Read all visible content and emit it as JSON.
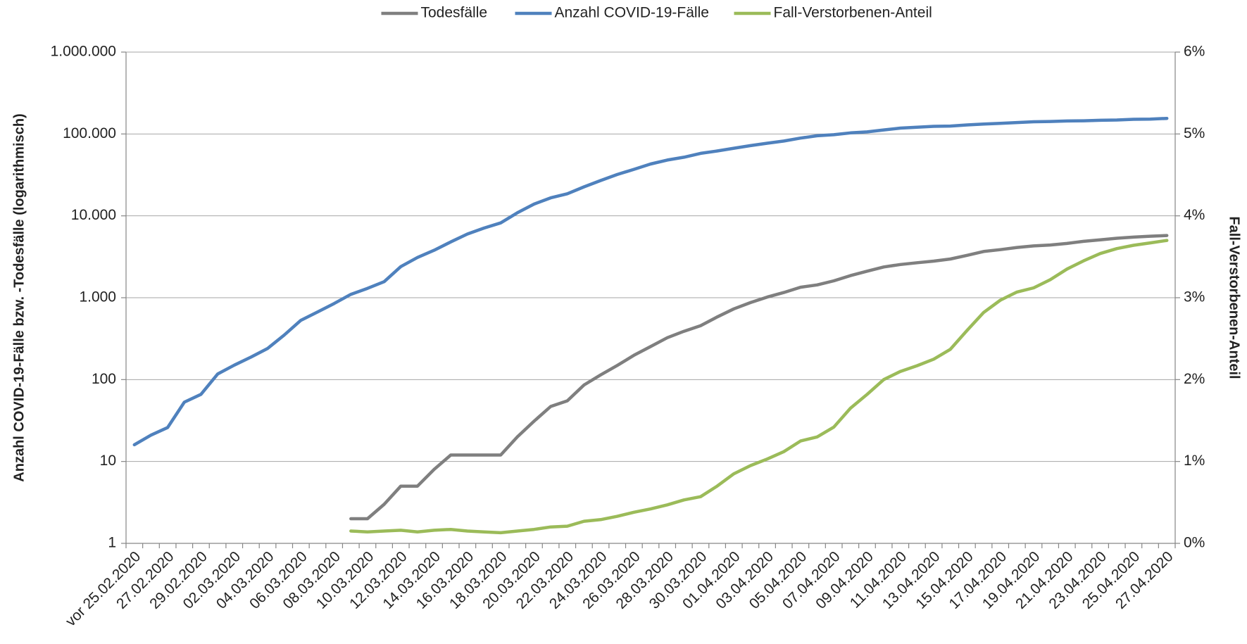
{
  "chart_data": {
    "type": "line",
    "y_label": "Anzahl COVID-19-Fälle bzw. -Todesfälle (logarithmisch)",
    "y2_label": "Fall-Verstorbenen-Anteil",
    "categories": [
      "vor 25.02.2020",
      null,
      "27.02.2020",
      null,
      "29.02.2020",
      null,
      "02.03.2020",
      null,
      "04.03.2020",
      null,
      "06.03.2020",
      null,
      "08.03.2020",
      null,
      "10.03.2020",
      null,
      "12.03.2020",
      null,
      "14.03.2020",
      null,
      "16.03.2020",
      null,
      "18.03.2020",
      null,
      "20.03.2020",
      null,
      "22.03.2020",
      null,
      "24.03.2020",
      null,
      "26.03.2020",
      null,
      "28.03.2020",
      null,
      "30.03.2020",
      null,
      "01.04.2020",
      null,
      "03.04.2020",
      null,
      "05.04.2020",
      null,
      "07.04.2020",
      null,
      "09.04.2020",
      null,
      "11.04.2020",
      null,
      "13.04.2020",
      null,
      "15.04.2020",
      null,
      "17.04.2020",
      null,
      "19.04.2020",
      null,
      "21.04.2020",
      null,
      "23.04.2020",
      null,
      "25.04.2020",
      null,
      "27.04.2020"
    ],
    "series": [
      {
        "name": "Todesfälle",
        "color": "#7f7f7f",
        "values": [
          null,
          null,
          null,
          null,
          null,
          null,
          null,
          null,
          null,
          null,
          null,
          null,
          null,
          2,
          2,
          3,
          5,
          5,
          8,
          12,
          12,
          12,
          12,
          20,
          31,
          47,
          55,
          86,
          114,
          149,
          198,
          253,
          325,
          389,
          455,
          583,
          732,
          872,
          1017,
          1158,
          1342,
          1434,
          1607,
          1861,
          2107,
          2373,
          2544,
          2673,
          2799,
          2969,
          3294,
          3668,
          3868,
          4110,
          4294,
          4404,
          4598,
          4879,
          5094,
          5321,
          5500,
          5640,
          5750
        ]
      },
      {
        "name": "Anzahl COVID-19-Fälle",
        "color": "#4f81bd",
        "values": [
          16,
          21,
          26,
          53,
          66,
          117,
          150,
          188,
          240,
          350,
          530,
          670,
          850,
          1100,
          1300,
          1570,
          2400,
          3100,
          3800,
          4800,
          6000,
          7100,
          8200,
          10900,
          13900,
          16600,
          18600,
          22600,
          27000,
          32000,
          37000,
          43000,
          48000,
          52000,
          58000,
          62000,
          67000,
          72000,
          77000,
          82000,
          89000,
          95000,
          98000,
          103000,
          106000,
          112000,
          118000,
          121000,
          124000,
          125000,
          129000,
          132000,
          135000,
          138000,
          141000,
          142000,
          144000,
          145000,
          147000,
          148000,
          151000,
          152000,
          155000
        ]
      },
      {
        "name": "Fall-Verstorbenen-Anteil",
        "color": "#9bbb59",
        "axis": "y2",
        "values": [
          null,
          null,
          null,
          null,
          null,
          null,
          null,
          null,
          null,
          null,
          null,
          null,
          null,
          0.15,
          0.14,
          0.15,
          0.16,
          0.14,
          0.16,
          0.17,
          0.15,
          0.14,
          0.13,
          0.15,
          0.17,
          0.2,
          0.21,
          0.27,
          0.29,
          0.33,
          0.38,
          0.42,
          0.47,
          0.53,
          0.57,
          0.7,
          0.85,
          0.95,
          1.03,
          1.12,
          1.25,
          1.3,
          1.42,
          1.65,
          1.82,
          2.0,
          2.1,
          2.17,
          2.25,
          2.37,
          2.6,
          2.82,
          2.97,
          3.07,
          3.12,
          3.22,
          3.35,
          3.45,
          3.54,
          3.6,
          3.64,
          3.67,
          3.7
        ]
      }
    ],
    "ylog": true,
    "ylim": [
      1,
      1000000
    ],
    "yticks": [
      1,
      10,
      100,
      {
        "value": 1000,
        "label": "1.000"
      },
      {
        "value": 10000,
        "label": "10.000"
      },
      {
        "value": 100000,
        "label": "100.000"
      },
      {
        "value": 1000000,
        "label": "1.000.000"
      }
    ],
    "y2lim": [
      0,
      6
    ],
    "y2ticks": [
      {
        "value": 0,
        "label": "0%"
      },
      {
        "value": 1,
        "label": "1%"
      },
      {
        "value": 2,
        "label": "2%"
      },
      {
        "value": 3,
        "label": "3%"
      },
      {
        "value": 4,
        "label": "4%"
      },
      {
        "value": 5,
        "label": "5%"
      },
      {
        "value": 6,
        "label": "6%"
      }
    ],
    "grid": true,
    "legend": "top"
  }
}
